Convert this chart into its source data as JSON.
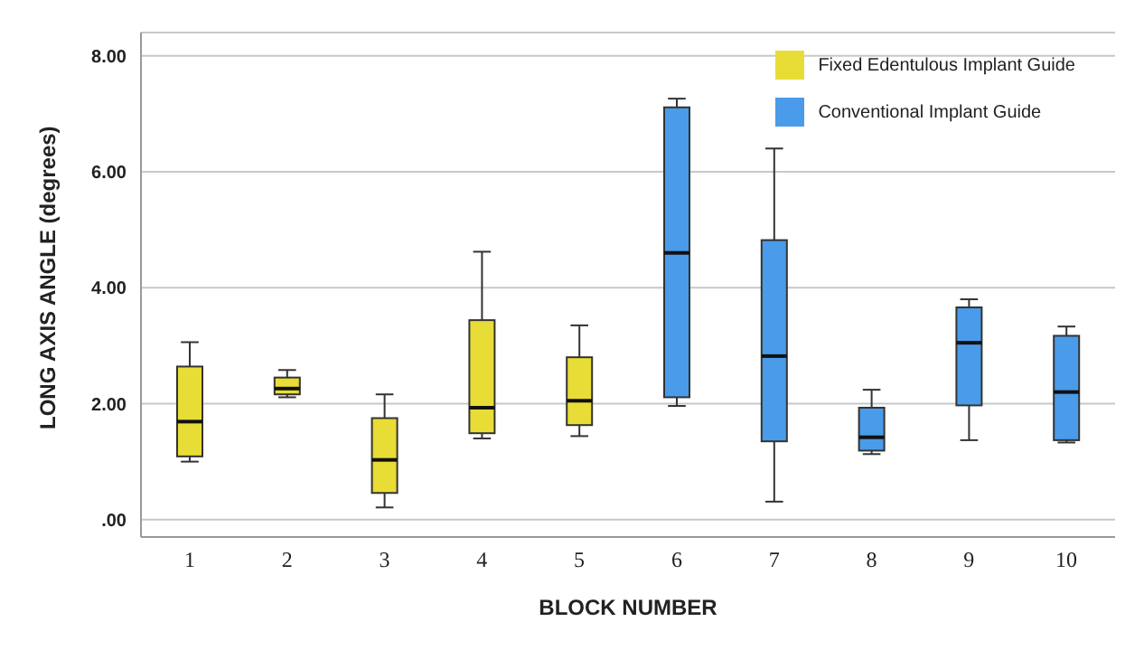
{
  "chart_data": {
    "type": "box",
    "xlabel": "BLOCK NUMBER",
    "ylabel": "LONG AXIS ANGLE (degrees)",
    "categories": [
      "1",
      "2",
      "3",
      "4",
      "5",
      "6",
      "7",
      "8",
      "9",
      "10"
    ],
    "ylim": [
      -0.3,
      8.4
    ],
    "yticks": [
      {
        "value": 0,
        "label": ".00"
      },
      {
        "value": 2,
        "label": "2.00"
      },
      {
        "value": 4,
        "label": "4.00"
      },
      {
        "value": 6,
        "label": "6.00"
      },
      {
        "value": 8,
        "label": "8.00"
      }
    ],
    "grid": "y",
    "legend": "top right",
    "series": [
      {
        "name": "Fixed Edentulous Implant Guide",
        "color": "#e8dc36",
        "boxes": [
          {
            "low": 1.0,
            "q1": 1.09,
            "median": 1.69,
            "q3": 2.64,
            "high": 3.06
          },
          {
            "low": 2.11,
            "q1": 2.16,
            "median": 2.26,
            "q3": 2.45,
            "high": 2.58
          },
          {
            "low": 0.21,
            "q1": 0.46,
            "median": 1.03,
            "q3": 1.75,
            "high": 2.16
          },
          {
            "low": 1.4,
            "q1": 1.49,
            "median": 1.93,
            "q3": 3.44,
            "high": 4.62
          },
          {
            "low": 1.44,
            "q1": 1.63,
            "median": 2.05,
            "q3": 2.8,
            "high": 3.35
          },
          null,
          null,
          null,
          null,
          null
        ]
      },
      {
        "name": "Conventional Implant Guide",
        "color": "#4a9bea",
        "boxes": [
          null,
          null,
          null,
          null,
          null,
          {
            "low": 1.96,
            "q1": 2.11,
            "median": 4.6,
            "q3": 7.11,
            "high": 7.26
          },
          {
            "low": 0.31,
            "q1": 1.35,
            "median": 2.82,
            "q3": 4.82,
            "high": 6.4
          },
          {
            "low": 1.13,
            "q1": 1.19,
            "median": 1.42,
            "q3": 1.93,
            "high": 2.24
          },
          {
            "low": 1.37,
            "q1": 1.97,
            "median": 3.05,
            "q3": 3.66,
            "high": 3.8
          },
          {
            "low": 1.33,
            "q1": 1.37,
            "median": 2.2,
            "q3": 3.17,
            "high": 3.33
          }
        ]
      }
    ]
  }
}
